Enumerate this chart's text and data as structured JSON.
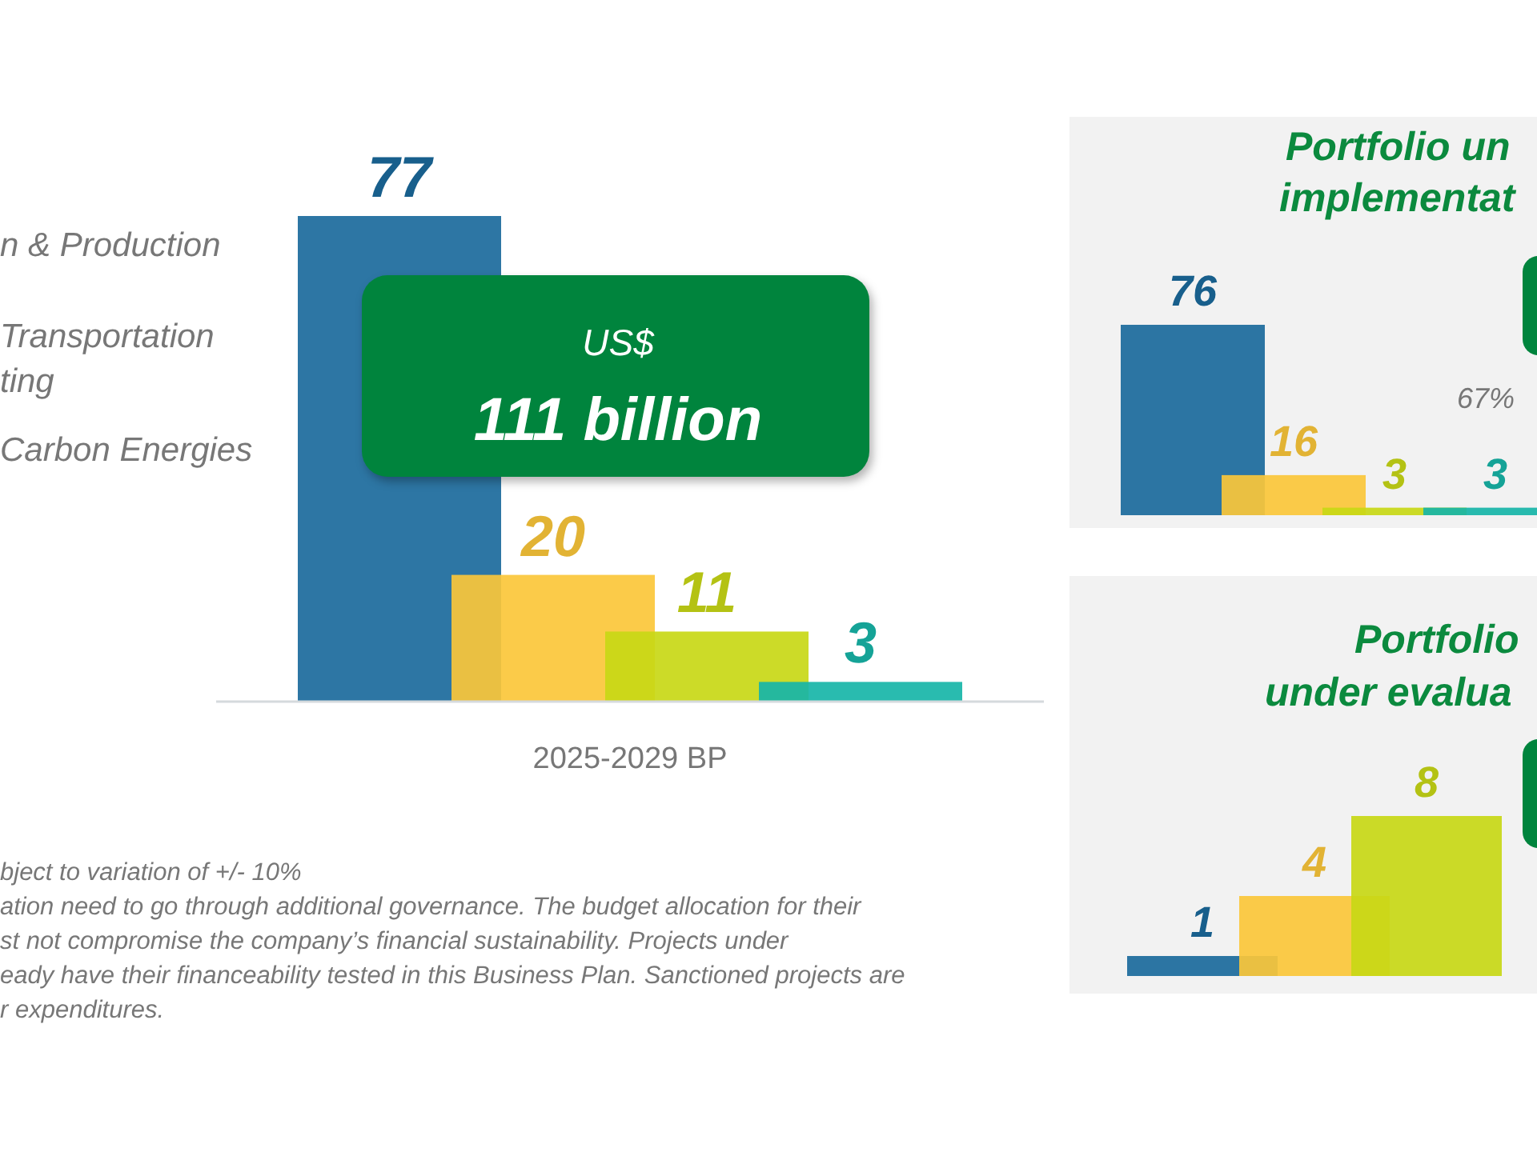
{
  "chart_data": [
    {
      "type": "bar",
      "categories": [
        null
      ],
      "xlabel": "2025-2029 BP",
      "data_labels": true,
      "series": [
        {
          "color": "#1b6a9c",
          "values": [
            77
          ]
        },
        {
          "color": "#fbc73a",
          "values": [
            20
          ]
        },
        {
          "color": "#c8d816",
          "values": [
            11
          ]
        },
        {
          "color": "#17b5a8",
          "values": [
            3
          ]
        }
      ],
      "annotations": [
        "US$",
        "111 billion",
        "n & Production",
        "Transportation\nting",
        "Carbon Energies",
        "bject to variation of +/- 10%",
        "ation need to go through additional governance. The budget allocation for their",
        "st not compromise the company’s financial  sustainability. Projects under",
        "eady have their financeability tested in this Business Plan. Sanctioned projects are",
        "r expenditures."
      ]
    },
    {
      "type": "bar",
      "title": "Portfolio un\nimplementat",
      "categories": [
        null
      ],
      "data_labels": true,
      "series": [
        {
          "color": "#1b6a9c",
          "values": [
            76
          ]
        },
        {
          "color": "#fbc73a",
          "values": [
            16
          ]
        },
        {
          "color": "#c8d816",
          "values": [
            3
          ]
        },
        {
          "color": "#17b5a8",
          "values": [
            3
          ]
        }
      ],
      "annotations": [
        "67%"
      ]
    },
    {
      "type": "bar",
      "title": "Portfolio\nunder evalua",
      "categories": [
        null
      ],
      "data_labels": true,
      "series": [
        {
          "color": "#1b6a9c",
          "values": [
            1
          ]
        },
        {
          "color": "#fbc73a",
          "values": [
            4
          ]
        },
        {
          "color": "#c8d816",
          "values": [
            8
          ]
        }
      ]
    }
  ]
}
